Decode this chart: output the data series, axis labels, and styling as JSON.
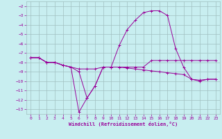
{
  "xlabel": "Windchill (Refroidissement éolien,°C)",
  "background_color": "#c8eef0",
  "grid_color": "#a0c0c0",
  "line_color": "#990099",
  "xlim": [
    -0.5,
    23.5
  ],
  "ylim": [
    -13.5,
    -1.5
  ],
  "yticks": [
    -2,
    -3,
    -4,
    -5,
    -6,
    -7,
    -8,
    -9,
    -10,
    -11,
    -12,
    -13
  ],
  "xticks": [
    0,
    1,
    2,
    3,
    4,
    5,
    6,
    7,
    8,
    9,
    10,
    11,
    12,
    13,
    14,
    15,
    16,
    17,
    18,
    19,
    20,
    21,
    22,
    23
  ],
  "series": [
    {
      "x": [
        0,
        1,
        2,
        3,
        4,
        5,
        6,
        7,
        8,
        9,
        10,
        11,
        12,
        13,
        14,
        15,
        16,
        17,
        18,
        19,
        20,
        21,
        22,
        23
      ],
      "y": [
        -7.5,
        -7.5,
        -8.0,
        -8.0,
        -8.3,
        -8.5,
        -13.3,
        -11.8,
        -10.5,
        -8.5,
        -8.5,
        -8.5,
        -8.5,
        -8.5,
        -8.5,
        -7.8,
        -7.8,
        -7.8,
        -7.8,
        -7.8,
        -7.8,
        -7.8,
        -7.8,
        -7.8
      ]
    },
    {
      "x": [
        0,
        1,
        2,
        3,
        4,
        5,
        6,
        7,
        8,
        9,
        10,
        11,
        12,
        13,
        14,
        15,
        16,
        17,
        18,
        19,
        20,
        21,
        22,
        23
      ],
      "y": [
        -7.5,
        -7.5,
        -8.0,
        -8.0,
        -8.3,
        -8.5,
        -9.0,
        -11.8,
        -10.5,
        -8.5,
        -8.5,
        -6.2,
        -4.5,
        -3.5,
        -2.7,
        -2.5,
        -2.5,
        -3.0,
        -6.5,
        -8.5,
        -9.8,
        -10.0,
        -9.8,
        -9.8
      ]
    },
    {
      "x": [
        0,
        1,
        2,
        3,
        4,
        5,
        6,
        7,
        8,
        9,
        10,
        11,
        12,
        13,
        14,
        15,
        16,
        17,
        18,
        19,
        20,
        21,
        22,
        23
      ],
      "y": [
        -7.5,
        -7.5,
        -8.0,
        -8.0,
        -8.3,
        -8.5,
        -8.7,
        -8.7,
        -8.7,
        -8.5,
        -8.5,
        -8.5,
        -8.6,
        -8.7,
        -8.8,
        -8.9,
        -9.0,
        -9.1,
        -9.2,
        -9.3,
        -9.8,
        -9.9,
        -9.8,
        -9.8
      ]
    }
  ]
}
